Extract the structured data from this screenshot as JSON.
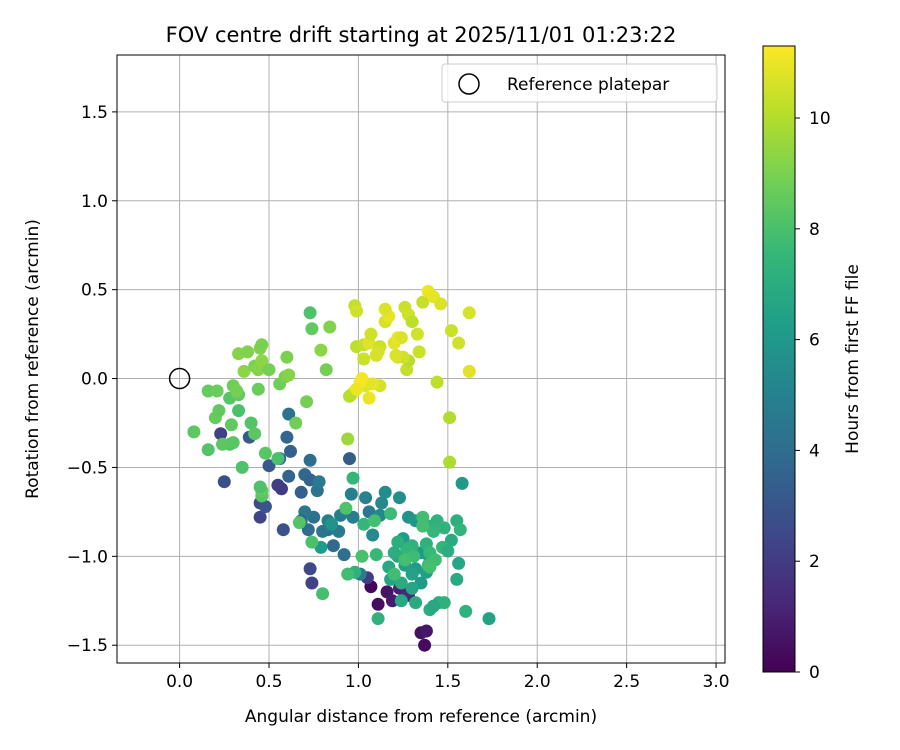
{
  "chart_data": {
    "type": "scatter",
    "title": "FOV centre drift starting at 2025/11/01 01:23:22",
    "xlabel": "Angular distance from reference (arcmin)",
    "ylabel": "Rotation from reference (arcmin)",
    "xlim": [
      -0.35,
      3.05
    ],
    "ylim": [
      -1.6,
      1.82
    ],
    "xticks": [
      "0.0",
      "0.5",
      "1.0",
      "1.5",
      "2.0",
      "2.5",
      "3.0"
    ],
    "yticks": [
      "−1.5",
      "−1.0",
      "−0.5",
      "0.0",
      "0.5",
      "1.0",
      "1.5"
    ],
    "grid": true,
    "legend": {
      "placement": "top-right",
      "entries": [
        "Reference platepar"
      ]
    },
    "colorbar": {
      "label": "Hours from first FF file",
      "range": [
        0,
        11.3
      ],
      "ticks": [
        "0",
        "2",
        "4",
        "6",
        "8",
        "10"
      ],
      "colormap": [
        "#440154",
        "#482878",
        "#3e4989",
        "#31688e",
        "#26828e",
        "#1f9e89",
        "#35b779",
        "#6ece58",
        "#b5de2b",
        "#fde725"
      ]
    },
    "reference_point": {
      "name": "Reference platepar",
      "x": 0.0,
      "y": 0.0
    },
    "series": [
      {
        "points": [
          [
            1.07,
            -1.17
          ],
          [
            1.11,
            -1.27
          ],
          [
            1.16,
            -1.2
          ],
          [
            1.19,
            -1.25
          ],
          [
            1.23,
            -1.18
          ],
          [
            1.27,
            -1.2
          ],
          [
            1.35,
            -1.43
          ],
          [
            1.38,
            -1.42
          ],
          [
            1.37,
            -1.5
          ],
          [
            1.28,
            -1.22
          ],
          [
            0.25,
            -0.58
          ],
          [
            0.23,
            -0.31
          ],
          [
            0.45,
            -0.78
          ],
          [
            0.55,
            -0.6
          ],
          [
            0.57,
            -0.62
          ],
          [
            0.45,
            -0.7
          ],
          [
            0.73,
            -1.07
          ],
          [
            0.74,
            -1.15
          ],
          [
            0.5,
            -0.49
          ],
          [
            1.05,
            -1.12
          ],
          [
            0.58,
            -0.85
          ],
          [
            0.48,
            -0.72
          ],
          [
            0.62,
            -0.41
          ],
          [
            0.6,
            -0.33
          ],
          [
            0.39,
            -0.33
          ],
          [
            0.7,
            -0.54
          ],
          [
            0.73,
            -0.57
          ],
          [
            0.68,
            -0.64
          ],
          [
            0.75,
            -0.78
          ],
          [
            0.72,
            -0.85
          ],
          [
            0.83,
            -0.85
          ],
          [
            0.86,
            -0.94
          ],
          [
            0.8,
            -0.86
          ],
          [
            0.92,
            -0.99
          ],
          [
            0.89,
            -0.86
          ],
          [
            1.01,
            -1.1
          ],
          [
            0.7,
            -0.75
          ],
          [
            0.77,
            -0.63
          ],
          [
            0.9,
            -0.77
          ],
          [
            0.95,
            -0.45
          ],
          [
            0.96,
            -0.65
          ],
          [
            1.04,
            -0.67
          ],
          [
            1.06,
            -0.75
          ],
          [
            1.12,
            -0.77
          ],
          [
            1.13,
            -0.7
          ],
          [
            1.15,
            -0.64
          ],
          [
            1.08,
            -0.88
          ],
          [
            0.61,
            -0.55
          ],
          [
            0.56,
            -0.45
          ],
          [
            0.68,
            -0.8
          ],
          [
            0.97,
            -0.78
          ],
          [
            0.61,
            -0.2
          ],
          [
            0.78,
            -0.58
          ],
          [
            0.73,
            -0.46
          ],
          [
            0.83,
            -0.8
          ],
          [
            1.23,
            -0.67
          ],
          [
            1.28,
            -0.78
          ],
          [
            1.32,
            -0.8
          ],
          [
            1.25,
            -0.9
          ],
          [
            1.35,
            -0.98
          ],
          [
            1.4,
            -1.02
          ],
          [
            1.32,
            -1.07
          ],
          [
            1.26,
            -1.05
          ],
          [
            1.3,
            -1.1
          ],
          [
            1.22,
            -1.0
          ],
          [
            1.35,
            -1.15
          ],
          [
            1.38,
            -1.09
          ],
          [
            1.3,
            -1.18
          ],
          [
            1.24,
            -1.25
          ],
          [
            1.32,
            -1.26
          ],
          [
            1.4,
            -1.3
          ],
          [
            1.45,
            -1.26
          ],
          [
            1.48,
            -1.26
          ],
          [
            1.42,
            -1.28
          ],
          [
            1.6,
            -1.31
          ],
          [
            1.73,
            -1.35
          ],
          [
            1.55,
            -1.13
          ],
          [
            1.56,
            -1.04
          ],
          [
            1.52,
            -0.91
          ],
          [
            1.58,
            -0.59
          ],
          [
            1.55,
            -0.8
          ],
          [
            1.57,
            -0.85
          ],
          [
            1.48,
            -0.84
          ],
          [
            1.4,
            -0.83
          ],
          [
            1.42,
            -0.86
          ],
          [
            1.38,
            -0.93
          ],
          [
            1.3,
            -0.94
          ],
          [
            1.27,
            -0.96
          ],
          [
            1.22,
            -0.92
          ],
          [
            1.2,
            -0.98
          ],
          [
            1.17,
            -1.06
          ],
          [
            1.18,
            -1.13
          ],
          [
            1.24,
            -1.15
          ],
          [
            1.4,
            -0.98
          ],
          [
            1.47,
            -0.95
          ],
          [
            1.11,
            -1.35
          ],
          [
            1.02,
            -1.0
          ],
          [
            0.97,
            -0.56
          ],
          [
            0.98,
            -1.09
          ],
          [
            1.1,
            -0.99
          ],
          [
            1.36,
            -0.78
          ],
          [
            1.44,
            -0.8
          ],
          [
            1.5,
            -0.97
          ],
          [
            1.39,
            -1.05
          ],
          [
            1.31,
            -1.0
          ],
          [
            1.26,
            -1.02
          ],
          [
            1.2,
            -1.1
          ],
          [
            0.85,
            -0.82
          ],
          [
            0.79,
            -0.95
          ],
          [
            1.03,
            -0.82
          ],
          [
            0.28,
            -0.37
          ],
          [
            0.3,
            -0.36
          ],
          [
            0.24,
            -0.37
          ],
          [
            0.16,
            -0.4
          ],
          [
            0.08,
            -0.3
          ],
          [
            0.2,
            -0.22
          ],
          [
            0.29,
            -0.26
          ],
          [
            0.33,
            -0.18
          ],
          [
            0.22,
            -0.18
          ],
          [
            0.16,
            -0.07
          ],
          [
            0.21,
            -0.07
          ],
          [
            0.28,
            -0.11
          ],
          [
            0.3,
            -0.04
          ],
          [
            0.33,
            -0.09
          ],
          [
            0.32,
            -0.07
          ],
          [
            0.35,
            -0.5
          ],
          [
            0.4,
            -0.25
          ],
          [
            0.42,
            -0.31
          ],
          [
            0.48,
            -0.42
          ],
          [
            0.55,
            -0.45
          ],
          [
            0.46,
            -0.66
          ],
          [
            0.46,
            -0.63
          ],
          [
            0.45,
            -0.61
          ],
          [
            0.67,
            -0.81
          ],
          [
            0.74,
            -0.92
          ],
          [
            0.8,
            -1.21
          ],
          [
            0.93,
            -0.73
          ],
          [
            0.94,
            -1.1
          ],
          [
            1.09,
            -0.8
          ],
          [
            1.18,
            -0.76
          ],
          [
            1.36,
            -0.83
          ],
          [
            1.43,
            -1.02
          ],
          [
            1.4,
            -1.06
          ],
          [
            0.36,
            0.04
          ],
          [
            0.33,
            0.14
          ],
          [
            0.38,
            0.15
          ],
          [
            0.42,
            0.07
          ],
          [
            0.44,
            0.05
          ],
          [
            0.46,
            0.1
          ],
          [
            0.45,
            0.17
          ],
          [
            0.46,
            0.19
          ],
          [
            0.5,
            0.05
          ],
          [
            0.44,
            -0.06
          ],
          [
            0.56,
            -0.03
          ],
          [
            0.59,
            0.01
          ],
          [
            0.61,
            0.02
          ],
          [
            0.6,
            0.12
          ],
          [
            0.65,
            -0.25
          ],
          [
            0.71,
            -0.13
          ],
          [
            0.79,
            0.16
          ],
          [
            0.74,
            0.28
          ],
          [
            0.73,
            0.37
          ],
          [
            0.84,
            0.29
          ],
          [
            0.82,
            0.05
          ],
          [
            0.94,
            -0.34
          ],
          [
            0.98,
            0.41
          ],
          [
            0.99,
            0.38
          ],
          [
            0.99,
            0.18
          ],
          [
            1.03,
            0.11
          ],
          [
            1.03,
            0.19
          ],
          [
            1.06,
            0.2
          ],
          [
            1.1,
            0.13
          ],
          [
            1.07,
            0.25
          ],
          [
            1.12,
            0.18
          ],
          [
            1.15,
            0.32
          ],
          [
            1.17,
            0.35
          ],
          [
            1.15,
            0.39
          ],
          [
            1.2,
            0.2
          ],
          [
            1.22,
            0.23
          ],
          [
            1.22,
            0.12
          ],
          [
            1.24,
            0.23
          ],
          [
            1.26,
            0.4
          ],
          [
            1.28,
            0.36
          ],
          [
            1.3,
            0.32
          ],
          [
            1.27,
            0.05
          ],
          [
            1.28,
            0.1
          ],
          [
            1.33,
            0.25
          ],
          [
            1.34,
            0.15
          ],
          [
            1.36,
            0.43
          ],
          [
            1.39,
            0.49
          ],
          [
            1.42,
            0.46
          ],
          [
            1.46,
            0.42
          ],
          [
            1.44,
            -0.02
          ],
          [
            1.51,
            -0.22
          ],
          [
            1.51,
            -0.47
          ],
          [
            1.52,
            0.27
          ],
          [
            1.56,
            0.2
          ],
          [
            1.62,
            0.04
          ],
          [
            1.62,
            0.37
          ],
          [
            1.12,
            -0.04
          ],
          [
            1.08,
            -0.03
          ],
          [
            1.06,
            -0.11
          ],
          [
            1.04,
            -0.04
          ],
          [
            1.02,
            0.0
          ],
          [
            1.01,
            -0.02
          ],
          [
            0.98,
            -0.07
          ],
          [
            0.96,
            -0.09
          ],
          [
            0.95,
            -0.1
          ],
          [
            0.99,
            -0.06
          ],
          [
            1.25,
            0.12
          ],
          [
            1.21,
            0.13
          ],
          [
            1.11,
            0.15
          ]
        ],
        "hours": [
          0.2,
          0.4,
          0.6,
          0.8,
          1.0,
          1.2,
          0.5,
          0.7,
          0.3,
          1.4,
          2.8,
          2.2,
          2.4,
          2.1,
          2.0,
          2.6,
          2.5,
          2.3,
          3.2,
          2.0,
          2.9,
          3.0,
          3.5,
          3.7,
          3.2,
          3.8,
          3.6,
          3.4,
          4.2,
          4.0,
          4.3,
          3.9,
          4.4,
          4.1,
          4.6,
          4.8,
          4.5,
          4.3,
          4.7,
          3.3,
          4.9,
          5.0,
          4.6,
          5.2,
          5.3,
          5.5,
          5.4,
          3.6,
          3.4,
          3.8,
          4.8,
          4.2,
          4.6,
          4.0,
          4.9,
          5.6,
          5.8,
          6.0,
          6.1,
          6.2,
          6.3,
          6.1,
          6.4,
          6.5,
          6.6,
          6.2,
          6.4,
          6.7,
          6.8,
          6.9,
          7.0,
          7.1,
          7.2,
          6.8,
          7.3,
          6.5,
          6.9,
          6.7,
          6.9,
          6.0,
          7.1,
          7.4,
          7.3,
          7.2,
          7.5,
          7.2,
          7.3,
          7.4,
          7.1,
          7.0,
          6.8,
          6.6,
          6.9,
          7.6,
          7.5,
          7.2,
          8.0,
          7.5,
          7.2,
          7.6,
          7.8,
          7.3,
          7.0,
          7.8,
          7.7,
          7.9,
          7.8,
          5.8,
          6.1,
          7.5,
          8.2,
          8.3,
          8.4,
          8.2,
          8.4,
          8.6,
          8.5,
          8.0,
          8.5,
          8.6,
          8.7,
          8.3,
          8.8,
          8.5,
          8.9,
          8.1,
          8.2,
          8.4,
          8.3,
          8.0,
          8.3,
          8.5,
          8.1,
          8.2,
          8.0,
          7.9,
          8.1,
          7.8,
          7.9,
          7.7,
          7.9,
          7.8,
          7.9,
          9.3,
          9.2,
          9.1,
          9.0,
          9.2,
          9.3,
          9.1,
          9.0,
          8.9,
          8.7,
          8.8,
          9.0,
          9.2,
          9.0,
          8.8,
          8.9,
          9.3,
          8.5,
          8.1,
          9.1,
          8.9,
          9.6,
          10.3,
          10.5,
          10.2,
          10.4,
          10.3,
          10.8,
          10.6,
          10.5,
          10.4,
          10.6,
          10.9,
          10.7,
          10.8,
          11.0,
          10.6,
          10.7,
          10.4,
          10.5,
          10.2,
          10.3,
          10.1,
          10.5,
          10.4,
          10.3,
          11.0,
          10.9,
          10.7,
          10.2,
          10.0,
          9.9,
          10.4,
          10.5,
          10.8,
          10.6,
          10.6,
          10.9,
          11.0,
          10.8,
          11.1,
          11.2,
          11.0,
          10.7,
          10.1,
          11.0,
          10.5,
          10.7,
          10.6
        ]
      }
    ]
  }
}
